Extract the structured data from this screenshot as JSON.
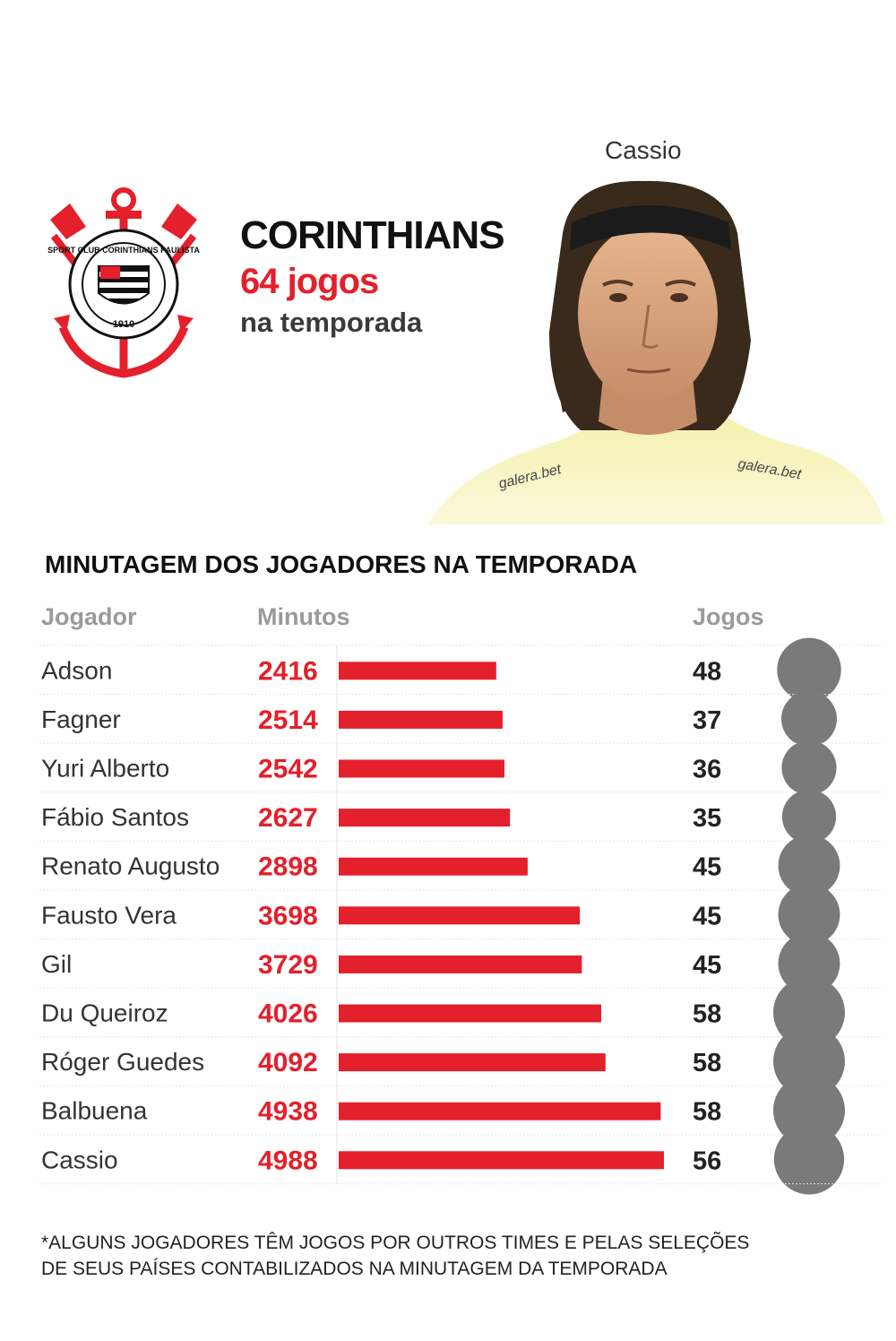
{
  "header": {
    "club": "CORINTHIANS",
    "games": "64 jogos",
    "season": "na temporada",
    "player": "Cassio",
    "sponsor": "galera.bet",
    "crest_text": "SPORT CLUB CORINTHIANS PAULISTA",
    "crest_year": "1910",
    "colors": {
      "accent": "#e3202b",
      "text": "#111111",
      "circle": "#7a7a7a"
    }
  },
  "chart_data": {
    "type": "bar",
    "title": "MINUTAGEM DOS JOGADORES NA TEMPORADA",
    "columns": {
      "player": "Jogador",
      "minutes": "Minutos",
      "games": "Jogos"
    },
    "categories": [
      "Adson",
      "Fagner",
      "Yuri Alberto",
      "Fábio Santos",
      "Renato Augusto",
      "Fausto Vera",
      "Gil",
      "Du Queiroz",
      "Róger Guedes",
      "Balbuena",
      "Cassio"
    ],
    "minutes": [
      2416,
      2514,
      2542,
      2627,
      2898,
      3698,
      3729,
      4026,
      4092,
      4938,
      4988
    ],
    "games": [
      48,
      37,
      36,
      35,
      45,
      45,
      45,
      58,
      58,
      58,
      56
    ],
    "xlim": [
      0,
      5000
    ],
    "bar_color": "#e3202b",
    "circle_color": "#7a7a7a"
  },
  "footnote": "*ALGUNS JOGADORES TÊM JOGOS POR OUTROS TIMES E PELAS SELEÇÕES DE  SEUS PAÍSES CONTABILIZADOS NA MINUTAGEM DA TEMPORADA"
}
